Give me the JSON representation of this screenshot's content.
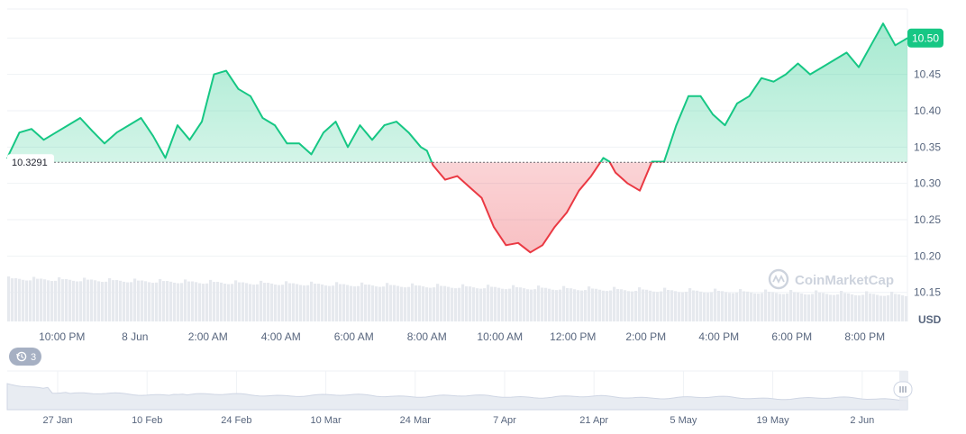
{
  "chart_data": {
    "type": "area",
    "baseline": 10.3291,
    "baseline_label": "10.3291",
    "currency": "USD",
    "current_price": 10.5,
    "current_price_label": "10.50",
    "watermark": "CoinMarketCap",
    "ylim": [
      10.11,
      10.54
    ],
    "yticks": [
      "10.15",
      "10.20",
      "10.25",
      "10.30",
      "10.35",
      "10.40",
      "10.45"
    ],
    "xticks": [
      "10:00 PM",
      "8 Jun",
      "2:00 AM",
      "4:00 AM",
      "6:00 AM",
      "8:00 AM",
      "10:00 AM",
      "12:00 PM",
      "2:00 PM",
      "4:00 PM",
      "6:00 PM",
      "8:00 PM"
    ],
    "colors": {
      "up": "#16c784",
      "down": "#ea3943",
      "label_bg": "#16c784"
    },
    "grid": true,
    "series": [
      {
        "x": [
          "20:30",
          "20:50",
          "21:10",
          "21:30",
          "21:50",
          "22:10",
          "22:30",
          "22:50",
          "23:10",
          "23:30",
          "23:50",
          "00:10",
          "00:30",
          "00:50",
          "01:10",
          "01:30",
          "01:50",
          "02:10",
          "02:30",
          "02:50",
          "03:10",
          "03:30",
          "03:50",
          "04:10",
          "04:30",
          "04:50",
          "05:10",
          "05:30",
          "05:50",
          "06:10",
          "06:30",
          "06:50",
          "07:10",
          "07:30",
          "07:50",
          "08:00",
          "08:10",
          "08:30",
          "08:50",
          "09:10",
          "09:30",
          "09:50",
          "10:10",
          "10:30",
          "10:50",
          "11:10",
          "11:30",
          "11:50",
          "12:10",
          "12:30",
          "12:50",
          "13:00",
          "13:10",
          "13:30",
          "13:50",
          "14:10",
          "14:30",
          "14:50",
          "15:10",
          "15:30",
          "15:50",
          "16:10",
          "16:30",
          "16:50",
          "17:10",
          "17:30",
          "17:50",
          "18:10",
          "18:30",
          "18:50",
          "19:10",
          "19:30",
          "19:50",
          "20:10",
          "20:30",
          "20:50",
          "21:10"
        ],
        "values": [
          10.335,
          10.37,
          10.375,
          10.36,
          10.37,
          10.38,
          10.39,
          10.372,
          10.355,
          10.37,
          10.38,
          10.39,
          10.365,
          10.335,
          10.38,
          10.36,
          10.385,
          10.45,
          10.455,
          10.43,
          10.42,
          10.39,
          10.38,
          10.355,
          10.355,
          10.34,
          10.37,
          10.385,
          10.35,
          10.38,
          10.36,
          10.38,
          10.385,
          10.37,
          10.35,
          10.345,
          10.325,
          10.305,
          10.31,
          10.295,
          10.28,
          10.24,
          10.215,
          10.218,
          10.205,
          10.215,
          10.24,
          10.26,
          10.29,
          10.31,
          10.335,
          10.33,
          10.315,
          10.3,
          10.29,
          10.33,
          10.33,
          10.38,
          10.42,
          10.42,
          10.395,
          10.38,
          10.41,
          10.42,
          10.445,
          10.44,
          10.45,
          10.465,
          10.45,
          10.46,
          10.47,
          10.48,
          10.46,
          10.49,
          10.52,
          10.49,
          10.5
        ]
      }
    ]
  },
  "navigator": {
    "badge_count": "3",
    "xticks": [
      "27 Jan",
      "10 Feb",
      "24 Feb",
      "10 Mar",
      "24 Mar",
      "7 Apr",
      "21 Apr",
      "5 May",
      "19 May",
      "2 Jun"
    ]
  }
}
